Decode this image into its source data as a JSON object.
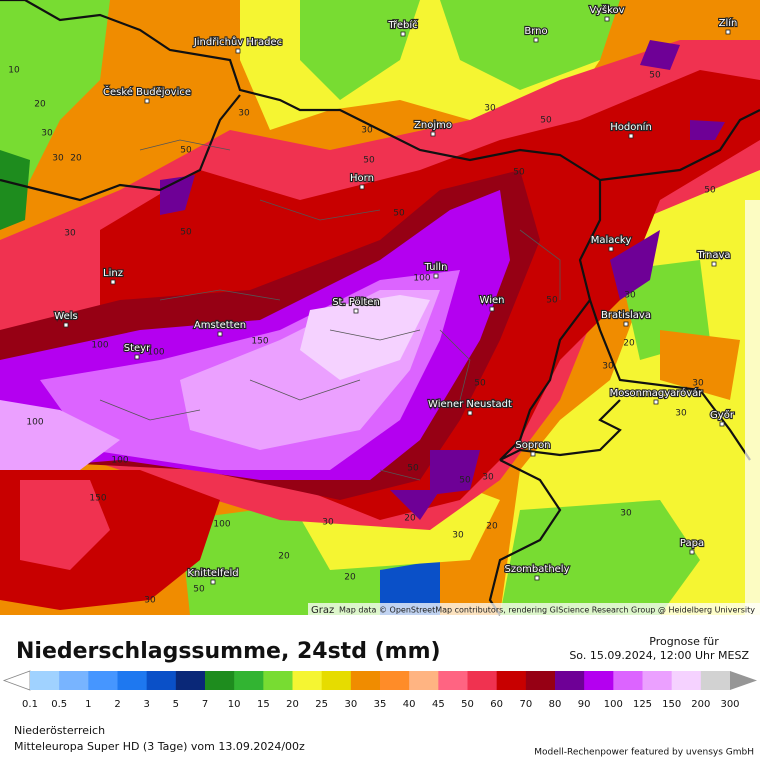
{
  "map": {
    "attribution_place": "Graz",
    "attribution": "Map data © OpenStreetMap contributors, rendering GIScience Research Group @ Heidelberg University",
    "cities": [
      "Třebíč",
      "Brno",
      "Vyškov",
      "Zlín",
      "Jindřichův Hradec",
      "České Budějovice",
      "Znojmo",
      "Hodonín",
      "Horn",
      "Linz",
      "Malacky",
      "Trnava",
      "Tulln",
      "St. Pölten",
      "Wien",
      "Wels",
      "Amstetten",
      "Bratislava",
      "Steyr",
      "Wiener Neustadt",
      "Mosonmagyaróvár",
      "Sopron",
      "Győr",
      "Papa",
      "Szombathely",
      "Knittelfeld"
    ],
    "contour_labels": [
      10,
      20,
      30,
      20,
      30,
      30,
      50,
      50,
      30,
      50,
      30,
      30,
      50,
      50,
      50,
      50,
      50,
      100,
      100,
      100,
      150,
      100,
      100,
      50,
      50,
      50,
      30,
      30,
      30,
      30,
      30,
      20,
      20,
      30,
      20,
      30,
      30,
      20,
      20,
      50,
      100,
      150,
      30,
      50
    ]
  },
  "header": {
    "title": "Niederschlagssumme, 24std (mm)",
    "forecast_label": "Prognose für",
    "forecast_time": "So. 15.09.2024, 12:00 Uhr MESZ"
  },
  "legend": {
    "labels": [
      0.1,
      0.5,
      1,
      2,
      3,
      5,
      7,
      10,
      15,
      20,
      25,
      30,
      35,
      40,
      45,
      50,
      60,
      70,
      80,
      90,
      100,
      125,
      150,
      200,
      300
    ],
    "colors": [
      "#a0d2ff",
      "#78b4ff",
      "#4696ff",
      "#1e78f0",
      "#0a50c8",
      "#0a2878",
      "#1e8c1e",
      "#32b432",
      "#78dc32",
      "#f5f532",
      "#e6dc00",
      "#f08c00",
      "#ff8c28",
      "#ffb482",
      "#ff6482",
      "#f03250",
      "#c80000",
      "#960014",
      "#6e0096",
      "#b400f0",
      "#dc64ff",
      "#eba0ff",
      "#f5d2ff",
      "#d2d2d2"
    ],
    "under_color": "#ffffff",
    "over_color": "#969696"
  },
  "footer": {
    "region": "Niederösterreich",
    "model": "Mitteleuropa Super HD (3 Tage) vom 13.09.2024/00z",
    "credit": "Modell-Rechenpower featured by uvensys GmbH"
  }
}
